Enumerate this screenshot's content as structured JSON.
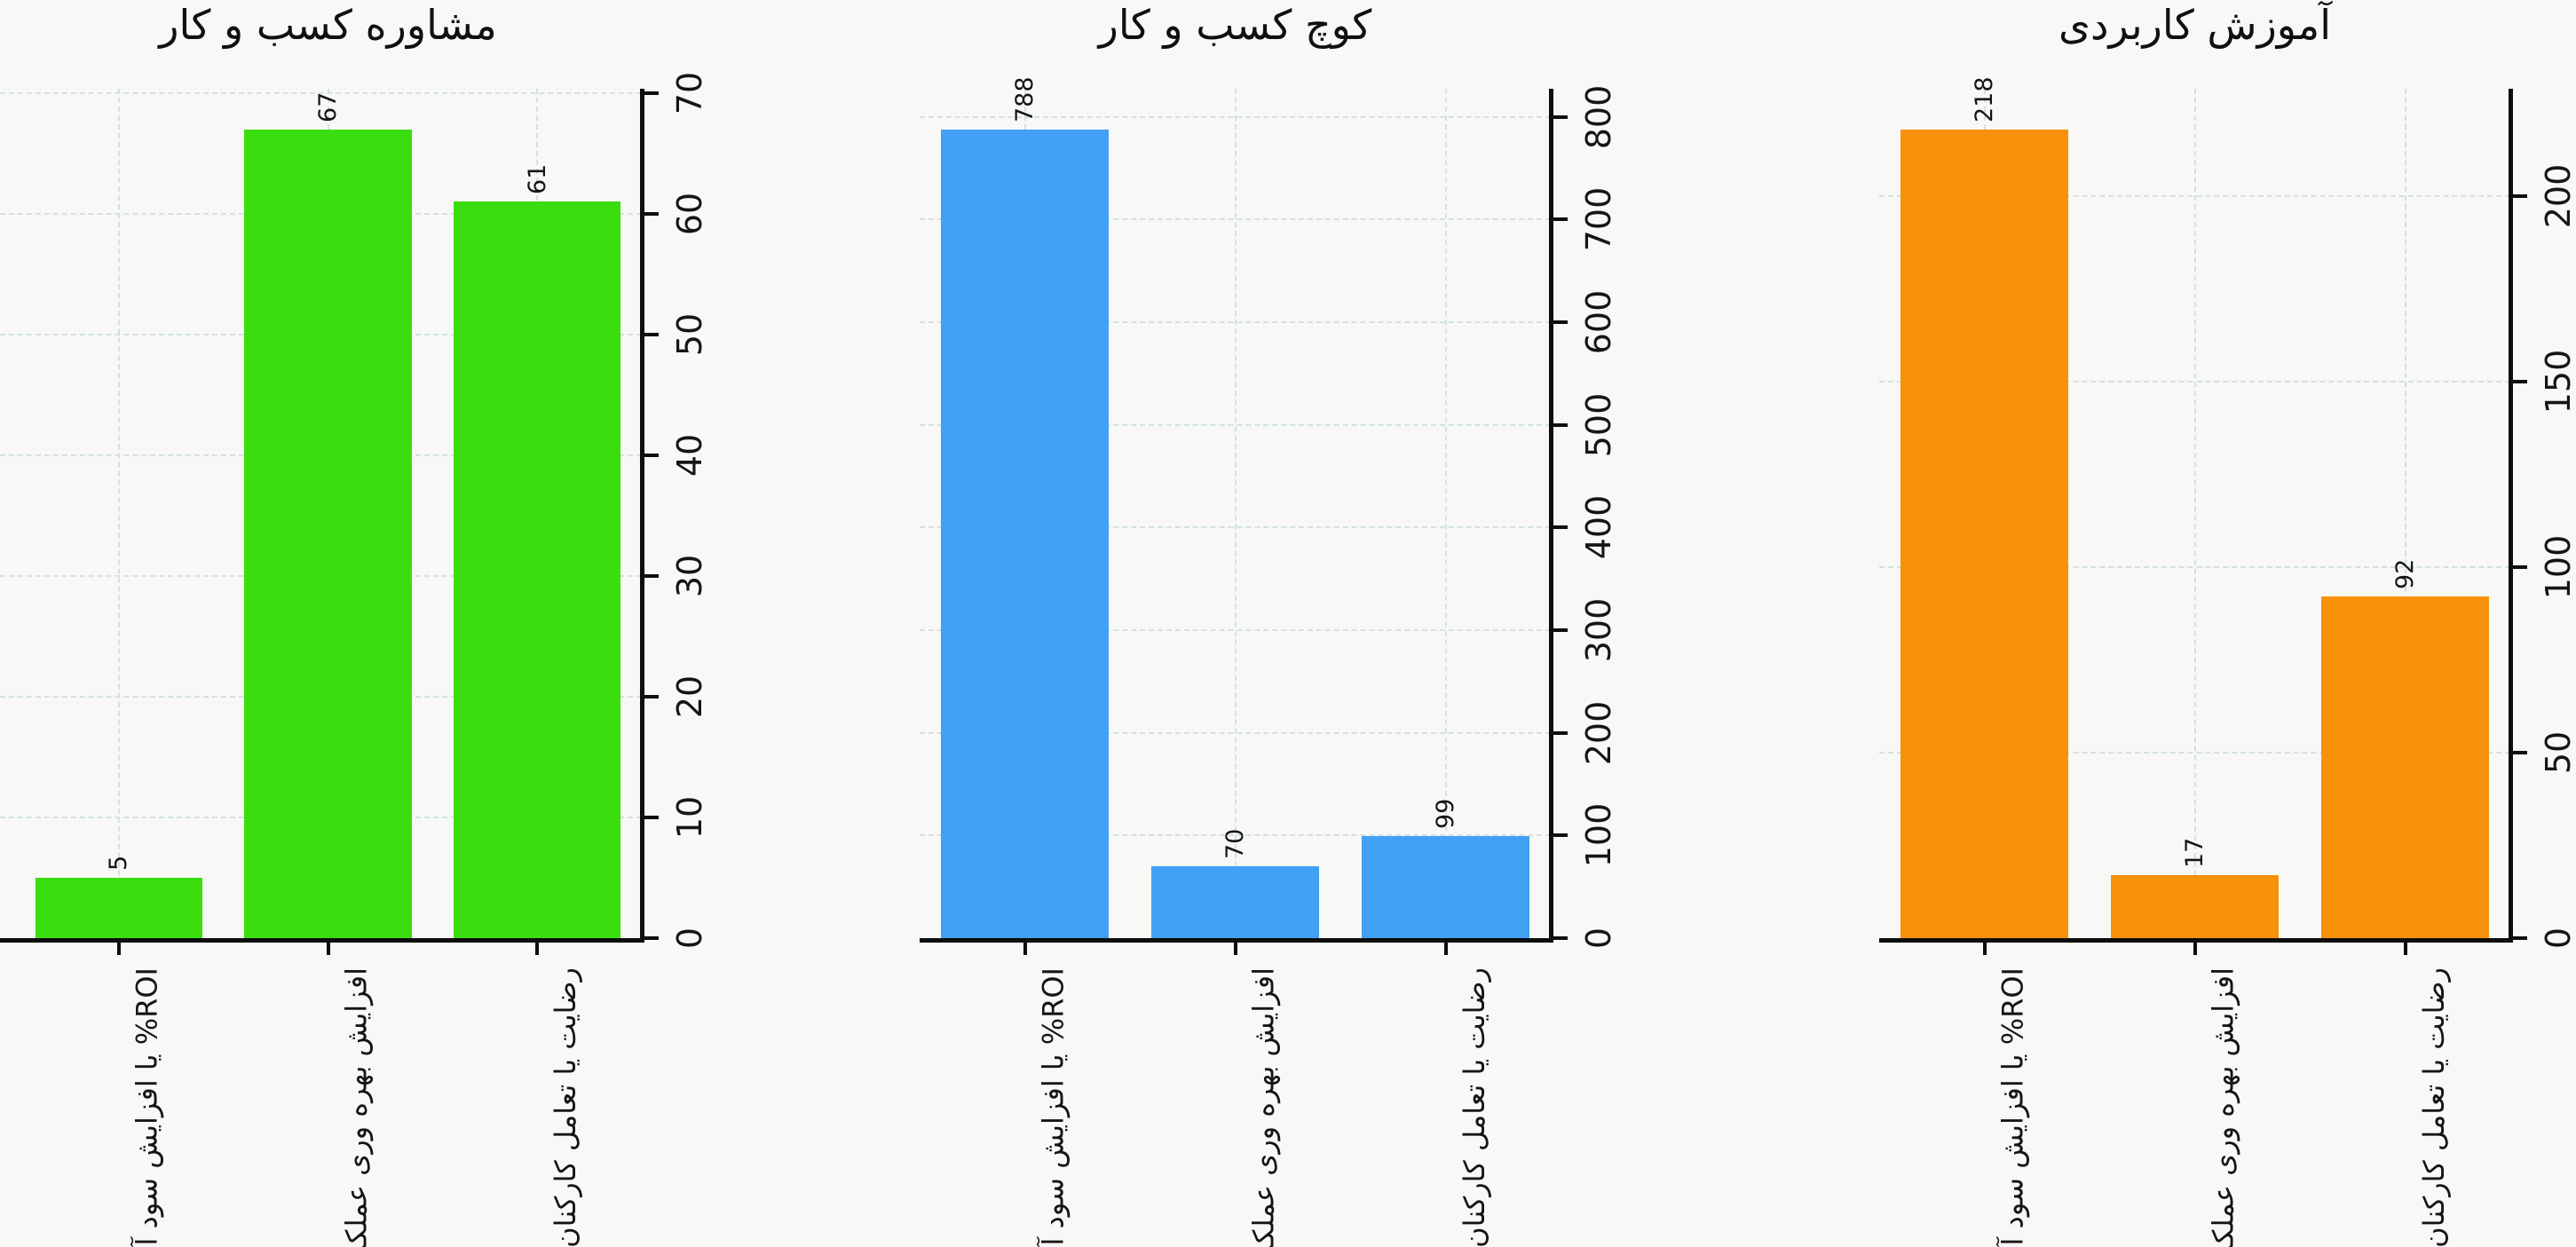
{
  "figure": {
    "background": "#f8f8f7",
    "grid_color": "#d2e2e3",
    "axis_color": "#0e0e0e",
    "text_color": "#151515"
  },
  "chart_data": [
    {
      "type": "bar",
      "title": "مشاوره کسب و کار",
      "categories": [
        "ROI% یا افزایش سود آوری",
        "افزایش بهره وری عملکرد %",
        "رضایت یا تعامل کارکنان"
      ],
      "values": [
        5,
        67,
        61
      ],
      "bar_color": "#3ade0f",
      "yticks": [
        0,
        10,
        20,
        30,
        40,
        50,
        60,
        70
      ],
      "ylim": [
        0,
        70.35
      ],
      "yaxis_side": "right",
      "grid": "dashed both axes",
      "tick_label_rotation_deg": 90,
      "bar_label_rotation_deg": 90
    },
    {
      "type": "bar",
      "title": "کوچ کسب و کار",
      "categories": [
        "ROI% یا افزایش سود آوری",
        "افزایش بهره وری عملکرد %",
        "رضایت یا تعامل کارکنان"
      ],
      "values": [
        788,
        70,
        99
      ],
      "bar_color": "#42a0f5",
      "yticks": [
        0,
        100,
        200,
        300,
        400,
        500,
        600,
        700,
        800
      ],
      "ylim": [
        0,
        827.4
      ],
      "yaxis_side": "right",
      "grid": "dashed both axes",
      "tick_label_rotation_deg": 90,
      "bar_label_rotation_deg": 90
    },
    {
      "type": "bar",
      "title": "آموزش کاربردی",
      "categories": [
        "ROI% یا افزایش سود آوری",
        "افزایش بهره وری عملکرد %",
        "رضایت یا تعامل کارکنان"
      ],
      "values": [
        218,
        17,
        92
      ],
      "bar_color": "#f8910a",
      "yticks": [
        0,
        50,
        100,
        150,
        200
      ],
      "ylim": [
        0,
        228.9
      ],
      "yaxis_side": "right",
      "grid": "dashed both axes",
      "tick_label_rotation_deg": 90,
      "bar_label_rotation_deg": 90
    }
  ]
}
